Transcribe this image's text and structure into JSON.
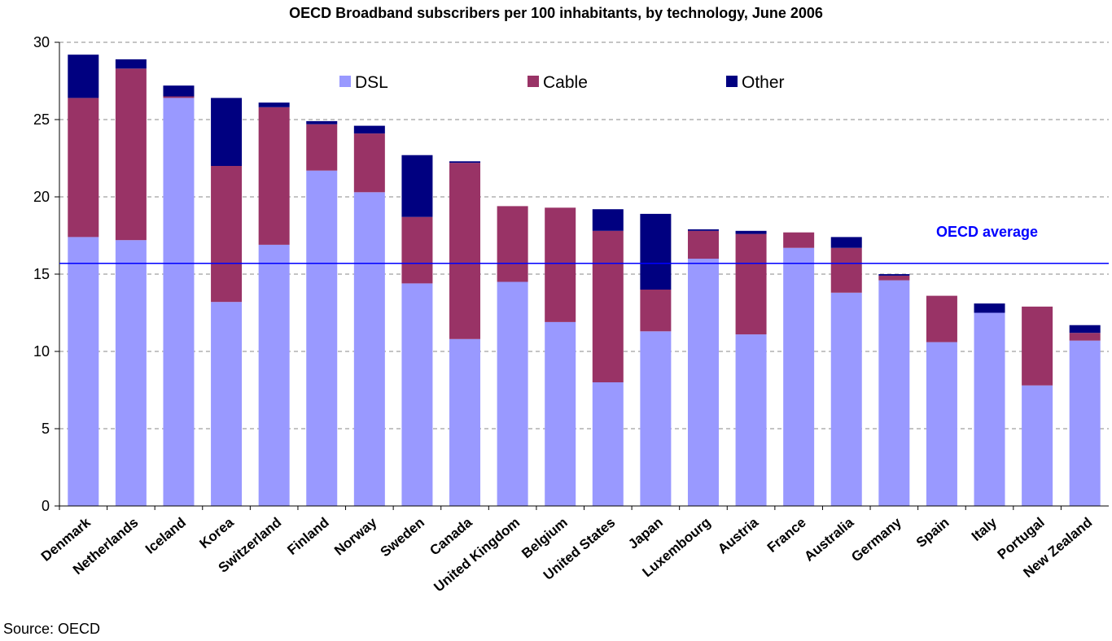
{
  "chart_data": {
    "type": "bar",
    "stacked": true,
    "title": "OECD Broadband subscribers per 100 inhabitants, by technology, June 2006",
    "categories": [
      "Denmark",
      "Netherlands",
      "Iceland",
      "Korea",
      "Switzerland",
      "Finland",
      "Norway",
      "Sweden",
      "Canada",
      "United Kingdom",
      "Belgium",
      "United States",
      "Japan",
      "Luxembourg",
      "Austria",
      "France",
      "Australia",
      "Germany",
      "Spain",
      "Italy",
      "Portugal",
      "New Zealand"
    ],
    "series": [
      {
        "name": "DSL",
        "color": "#9999ff",
        "values": [
          17.4,
          17.2,
          26.4,
          13.2,
          16.9,
          21.7,
          20.3,
          14.4,
          10.8,
          14.5,
          11.9,
          8.0,
          11.3,
          16.0,
          11.1,
          16.7,
          13.8,
          14.6,
          10.6,
          12.5,
          7.8,
          10.7
        ]
      },
      {
        "name": "Cable",
        "color": "#993366",
        "values": [
          9.0,
          11.1,
          0.1,
          8.8,
          8.9,
          3.0,
          3.8,
          4.3,
          11.4,
          4.9,
          7.4,
          9.8,
          2.7,
          1.8,
          6.5,
          1.0,
          2.9,
          0.3,
          3.0,
          0.0,
          5.1,
          0.5
        ]
      },
      {
        "name": "Other",
        "color": "#000080",
        "values": [
          2.8,
          0.6,
          0.7,
          4.4,
          0.3,
          0.2,
          0.5,
          4.0,
          0.1,
          0.0,
          0.0,
          1.4,
          4.9,
          0.1,
          0.2,
          0.0,
          0.7,
          0.1,
          0.0,
          0.6,
          0.0,
          0.5
        ]
      }
    ],
    "ylim": [
      0,
      30
    ],
    "yticks": [
      0,
      5,
      10,
      15,
      20,
      25,
      30
    ],
    "grid": true,
    "legend": "top",
    "reference_line": {
      "label": "OECD average",
      "value": 15.7,
      "color": "#0000ff"
    }
  },
  "source": "Source: OECD"
}
